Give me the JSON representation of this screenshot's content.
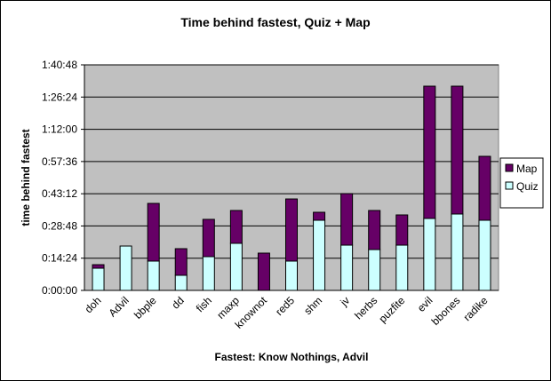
{
  "chart_data": {
    "type": "stacked-bar",
    "title": "Time behind fastest, Quiz + Map",
    "y_label": "time behind fastest",
    "x_label": "Fastest: Know Nothings, Advil",
    "categories": [
      "doh",
      "Advil",
      "bbple",
      "dd",
      "fish",
      "maxp",
      "knownot",
      "red5",
      "shm",
      "jv",
      "herbs",
      "puzfite",
      "evil",
      "bbones",
      "radike"
    ],
    "series": [
      {
        "name": "Quiz",
        "color": "#ccffff",
        "values": [
          595,
          1190,
          786,
          405,
          905,
          1262,
          0,
          786,
          1881,
          1214,
          1095,
          1214,
          1929,
          2048,
          1881
        ]
      },
      {
        "name": "Map",
        "color": "#660066",
        "values": [
          95,
          0,
          1547,
          714,
          1000,
          881,
          1000,
          1666,
          214,
          1381,
          1048,
          810,
          3547,
          3428,
          1714
        ]
      }
    ],
    "ylim": [
      0,
      6048
    ],
    "yticks": [
      {
        "value": 0,
        "label": "0:00:00"
      },
      {
        "value": 864,
        "label": "0:14:24"
      },
      {
        "value": 1728,
        "label": "0:28:48"
      },
      {
        "value": 2592,
        "label": "0:43:12"
      },
      {
        "value": 3456,
        "label": "0:57:36"
      },
      {
        "value": 4320,
        "label": "1:12:00"
      },
      {
        "value": 5184,
        "label": "1:26:24"
      },
      {
        "value": 6048,
        "label": "1:40:48"
      }
    ],
    "grid": true,
    "legend": "right"
  }
}
